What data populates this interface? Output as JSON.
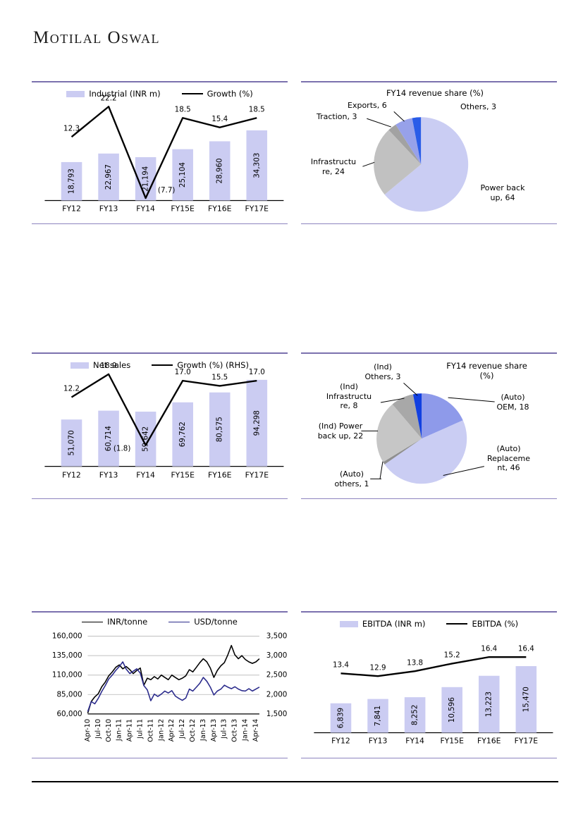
{
  "page": {
    "logo_text": "Motilal Oswal",
    "accent_color": "#7b71ae"
  },
  "chart_data": [
    {
      "id": "industrial-revenue",
      "type": "bar",
      "categories": [
        "FY12",
        "FY13",
        "FY14",
        "FY15E",
        "FY16E",
        "FY17E"
      ],
      "series": [
        {
          "name": "Industrial (INR m)",
          "kind": "bar",
          "color": "#cbccf2",
          "values": [
            18793,
            22967,
            21194,
            25104,
            28960,
            34303
          ],
          "labels": [
            "18,793",
            "22,967",
            "21,194",
            "25,104",
            "28,960",
            "34,303"
          ]
        },
        {
          "name": "Growth (%)",
          "kind": "line",
          "color": "#000000",
          "values": [
            12.3,
            22.2,
            -7.7,
            18.5,
            15.4,
            18.5
          ],
          "labels": [
            "12.3",
            "22.2",
            "(7.7)",
            "18.5",
            "15.4",
            "18.5"
          ]
        }
      ],
      "bar_ylim": [
        0,
        51600
      ],
      "line_ylim": [
        -8.5,
        26
      ],
      "legend_position": "top"
    },
    {
      "id": "fy14-revenue-share-by-segment",
      "type": "pie",
      "title": "FY14 revenue share (%)",
      "slices": [
        {
          "label": "Power back up",
          "value": 64,
          "color": "#cacdf3",
          "label_lines": [
            "Power back",
            "up, 64"
          ]
        },
        {
          "label": "Infrastructure",
          "value": 24,
          "color": "#c1c1c1",
          "label_lines": [
            "Infrastructu",
            "re, 24"
          ]
        },
        {
          "label": "Traction",
          "value": 3,
          "color": "#a2a2a2",
          "label_lines": [
            "Traction, 3"
          ]
        },
        {
          "label": "Exports",
          "value": 6,
          "color": "#97a1ea",
          "label_lines": [
            "Exports, 6"
          ]
        },
        {
          "label": "Others",
          "value": 3,
          "color": "#2a5ce8",
          "label_lines": [
            "Others, 3"
          ]
        }
      ]
    },
    {
      "id": "net-sales",
      "type": "bar",
      "categories": [
        "FY12",
        "FY13",
        "FY14",
        "FY15E",
        "FY16E",
        "FY17E"
      ],
      "series": [
        {
          "name": "Net sales",
          "kind": "bar",
          "color": "#cbccf2",
          "values": [
            51070,
            60714,
            59642,
            69762,
            80575,
            94298
          ],
          "labels": [
            "51,070",
            "60,714",
            "59,642",
            "69,762",
            "80,575",
            "94,298"
          ]
        },
        {
          "name": "Growth (%) (RHS)",
          "kind": "line",
          "color": "#000000",
          "values": [
            12.2,
            18.9,
            -1.8,
            17.0,
            15.5,
            17.0
          ],
          "labels": [
            "12.2",
            "18.9",
            "(1.8)",
            "17.0",
            "15.5",
            "17.0"
          ]
        }
      ],
      "bar_ylim": [
        0,
        112000
      ],
      "line_ylim": [
        -8,
        22
      ],
      "legend_position": "top"
    },
    {
      "id": "fy14-revenue-share-auto-ind",
      "type": "pie",
      "title": "FY14 revenue share (%)",
      "slices": [
        {
          "label": "(Auto) OEM",
          "value": 18,
          "color": "#8e9aea",
          "label_lines": [
            "(Auto)",
            "OEM, 18"
          ]
        },
        {
          "label": "(Auto) Replacement",
          "value": 46,
          "color": "#cacdf3",
          "label_lines": [
            "(Auto)",
            "Replaceme",
            "nt, 46"
          ]
        },
        {
          "label": "(Auto) others",
          "value": 1,
          "color": "#8f8f8f",
          "label_lines": [
            "(Auto)",
            "others, 1"
          ]
        },
        {
          "label": "(Ind) Power back up",
          "value": 22,
          "color": "#c6c6c6",
          "label_lines": [
            "(Ind) Power",
            "back up, 22"
          ]
        },
        {
          "label": "(Ind) Infrastructure",
          "value": 8,
          "color": "#a8a8a8",
          "label_lines": [
            "(Ind)",
            "Infrastructu",
            "re, 8"
          ]
        },
        {
          "label": "(Ind) Others",
          "value": 3,
          "color": "#1240e0",
          "label_lines": [
            "(Ind)",
            "Others, 3"
          ]
        }
      ]
    },
    {
      "id": "lead-price-trend",
      "type": "line",
      "x_tick_labels": [
        "Apr-10",
        "Jul-10",
        "Oct-10",
        "Jan-11",
        "Apr-11",
        "Jul-11",
        "Oct-11",
        "Jan-12",
        "Apr-12",
        "Jul-12",
        "Oct-12",
        "Jan-13",
        "Apr-13",
        "Jul-13",
        "Oct-13",
        "Jan-14",
        "Apr-14"
      ],
      "left_axis": {
        "min": 60000,
        "max": 160000,
        "tick_labels": [
          "160,000",
          "135,000",
          "110,000",
          "85,000",
          "60,000"
        ]
      },
      "right_axis": {
        "min": 1500,
        "max": 3500,
        "tick_labels": [
          "3,500",
          "3,000",
          "2,500",
          "2,000",
          "1,500"
        ]
      },
      "grid": true,
      "legend_position": "top",
      "series": [
        {
          "name": "INR/tonne",
          "axis": "left",
          "color": "#000000",
          "values": [
            61000,
            76000,
            82000,
            86000,
            95000,
            101000,
            109000,
            114000,
            120000,
            123000,
            118000,
            121000,
            117000,
            112000,
            116000,
            119000,
            97000,
            106000,
            104000,
            108000,
            105000,
            110000,
            107000,
            104000,
            110000,
            107000,
            104000,
            106000,
            109000,
            117000,
            114000,
            120000,
            126000,
            131000,
            127000,
            119000,
            107000,
            116000,
            122000,
            126000,
            136000,
            148000,
            136000,
            131000,
            135000,
            130000,
            127000,
            125000,
            127000,
            131000
          ]
        },
        {
          "name": "USD/tonne",
          "axis": "right",
          "color": "#2b2b8c",
          "values": [
            1560,
            1820,
            1760,
            1900,
            2080,
            2230,
            2400,
            2500,
            2620,
            2720,
            2840,
            2650,
            2540,
            2600,
            2660,
            2550,
            2230,
            2120,
            1840,
            2010,
            1950,
            2010,
            2090,
            2040,
            2100,
            1960,
            1900,
            1850,
            1910,
            2140,
            2090,
            2190,
            2290,
            2440,
            2340,
            2190,
            1990,
            2090,
            2140,
            2240,
            2190,
            2150,
            2200,
            2140,
            2100,
            2090,
            2150,
            2090,
            2140,
            2190
          ]
        }
      ]
    },
    {
      "id": "ebitda",
      "type": "bar",
      "categories": [
        "FY12",
        "FY13",
        "FY14",
        "FY15E",
        "FY16E",
        "FY17E"
      ],
      "series": [
        {
          "name": "EBITDA (INR m)",
          "kind": "bar",
          "color": "#cbccf2",
          "values": [
            6839,
            7841,
            8252,
            10596,
            13223,
            15470
          ],
          "labels": [
            "6,839",
            "7,841",
            "8,252",
            "10,596",
            "13,223",
            "15,470"
          ]
        },
        {
          "name": "EBITDA (%)",
          "kind": "line",
          "color": "#000000",
          "values": [
            13.4,
            12.9,
            13.8,
            15.2,
            16.4,
            16.4
          ],
          "labels": [
            "13.4",
            "12.9",
            "13.8",
            "15.2",
            "16.4",
            "16.4"
          ]
        }
      ],
      "bar_ylim": [
        0,
        23400
      ],
      "line_ylim": [
        2.5,
        21
      ],
      "legend_position": "top"
    }
  ]
}
